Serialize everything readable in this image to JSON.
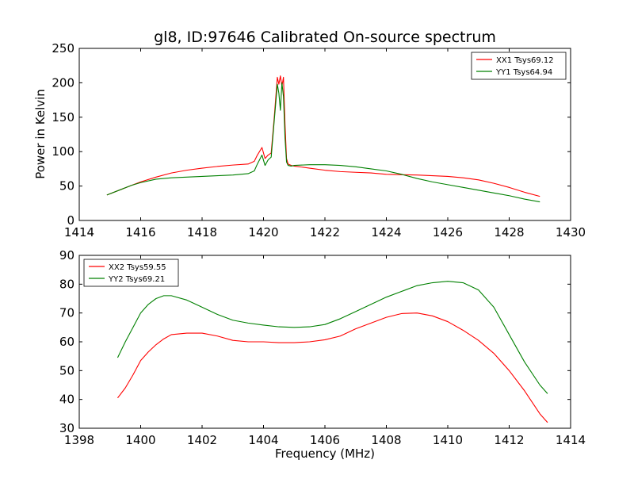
{
  "title": "gl8, ID:97646 Calibrated On-source spectrum",
  "colors": {
    "xx": "#ff0000",
    "yy": "#008000",
    "axis": "#000000",
    "background": "#ffffff"
  },
  "chart_data": [
    {
      "type": "line",
      "title": "gl8, ID:97646 Calibrated On-source spectrum",
      "xlabel": "",
      "ylabel": "Power in Kelvin",
      "xlim": [
        1414,
        1430
      ],
      "ylim": [
        0,
        250
      ],
      "xticks": [
        1414,
        1416,
        1418,
        1420,
        1422,
        1424,
        1426,
        1428,
        1430
      ],
      "yticks": [
        0,
        50,
        100,
        150,
        200,
        250
      ],
      "xtick_labels": [
        "1414",
        "1416",
        "1418",
        "1420",
        "1422",
        "1424",
        "1426",
        "1428",
        "1430"
      ],
      "ytick_labels": [
        "0",
        "50",
        "100",
        "150",
        "200",
        "250"
      ],
      "grid": false,
      "legend_position": "top-right",
      "series": [
        {
          "name": "XX1 Tsys69.12",
          "color": "#ff0000",
          "x": [
            1414.9,
            1415.3,
            1415.7,
            1416.0,
            1416.5,
            1417.0,
            1417.5,
            1418.0,
            1418.5,
            1419.0,
            1419.5,
            1419.7,
            1419.8,
            1419.95,
            1420.05,
            1420.15,
            1420.25,
            1420.35,
            1420.45,
            1420.5,
            1420.55,
            1420.6,
            1420.65,
            1420.7,
            1420.75,
            1420.8,
            1420.9,
            1421.0,
            1421.5,
            1422.0,
            1422.5,
            1423.0,
            1423.5,
            1424.0,
            1424.5,
            1425.0,
            1425.5,
            1426.0,
            1426.5,
            1427.0,
            1427.5,
            1428.0,
            1428.5,
            1429.0
          ],
          "y": [
            37,
            44,
            51,
            56,
            63,
            69,
            73,
            76,
            78.5,
            80.5,
            82,
            86,
            95,
            106,
            90,
            95,
            98,
            150,
            208,
            198,
            210,
            195,
            208,
            140,
            90,
            82,
            80,
            79,
            76,
            73,
            71,
            70,
            69,
            67,
            66.5,
            66,
            65,
            64,
            62,
            59,
            54,
            48,
            41,
            35
          ]
        },
        {
          "name": "YY1 Tsys64.94",
          "color": "#008000",
          "x": [
            1414.9,
            1415.3,
            1415.7,
            1416.0,
            1416.5,
            1417.0,
            1417.5,
            1418.0,
            1418.5,
            1419.0,
            1419.5,
            1419.7,
            1419.8,
            1419.95,
            1420.05,
            1420.15,
            1420.25,
            1420.35,
            1420.45,
            1420.5,
            1420.55,
            1420.6,
            1420.65,
            1420.7,
            1420.75,
            1420.8,
            1420.9,
            1421.0,
            1421.5,
            1422.0,
            1422.5,
            1423.0,
            1423.5,
            1424.0,
            1424.5,
            1425.0,
            1425.5,
            1426.0,
            1426.5,
            1427.0,
            1427.5,
            1428.0,
            1428.5,
            1429.0
          ],
          "y": [
            37,
            44,
            51,
            55,
            60,
            62,
            63,
            64,
            65,
            66,
            68,
            72,
            82,
            95,
            80,
            88,
            92,
            145,
            198,
            185,
            160,
            200,
            180,
            120,
            85,
            80,
            79,
            80,
            81,
            81,
            80,
            78,
            75,
            72,
            67,
            61,
            56,
            52,
            48,
            44,
            40,
            36,
            31,
            27
          ]
        }
      ]
    },
    {
      "type": "line",
      "title": "",
      "xlabel": "Frequency (MHz)",
      "ylabel": "",
      "xlim": [
        1398,
        1414
      ],
      "ylim": [
        30,
        90
      ],
      "xticks": [
        1398,
        1400,
        1402,
        1404,
        1406,
        1408,
        1410,
        1412,
        1414
      ],
      "yticks": [
        30,
        40,
        50,
        60,
        70,
        80,
        90
      ],
      "xtick_labels": [
        "1398",
        "1400",
        "1402",
        "1404",
        "1406",
        "1408",
        "1410",
        "1412",
        "1414"
      ],
      "ytick_labels": [
        "30",
        "40",
        "50",
        "60",
        "70",
        "80",
        "90"
      ],
      "grid": false,
      "legend_position": "top-left",
      "series": [
        {
          "name": "XX2 Tsys59.55",
          "color": "#ff0000",
          "x": [
            1399.25,
            1399.5,
            1399.75,
            1400.0,
            1400.25,
            1400.5,
            1400.75,
            1401.0,
            1401.5,
            1402.0,
            1402.5,
            1403.0,
            1403.5,
            1404.0,
            1404.5,
            1405.0,
            1405.5,
            1406.0,
            1406.5,
            1407.0,
            1407.5,
            1408.0,
            1408.5,
            1409.0,
            1409.5,
            1410.0,
            1410.5,
            1411.0,
            1411.5,
            1412.0,
            1412.5,
            1413.0,
            1413.25
          ],
          "y": [
            40.5,
            44,
            48.5,
            53.5,
            56.5,
            59,
            61,
            62.5,
            63,
            63,
            62,
            60.5,
            60,
            60,
            59.7,
            59.7,
            60,
            60.7,
            62,
            64.5,
            66.5,
            68.5,
            69.8,
            70,
            69,
            67,
            64,
            60.5,
            56,
            50,
            43,
            35,
            32
          ]
        },
        {
          "name": "YY2 Tsys69.21",
          "color": "#008000",
          "x": [
            1399.25,
            1399.5,
            1399.75,
            1400.0,
            1400.25,
            1400.5,
            1400.75,
            1401.0,
            1401.5,
            1402.0,
            1402.5,
            1403.0,
            1403.5,
            1404.0,
            1404.5,
            1405.0,
            1405.5,
            1406.0,
            1406.5,
            1407.0,
            1407.5,
            1408.0,
            1408.5,
            1409.0,
            1409.5,
            1410.0,
            1410.5,
            1411.0,
            1411.5,
            1412.0,
            1412.5,
            1413.0,
            1413.25
          ],
          "y": [
            54.5,
            60,
            65,
            70,
            73,
            75,
            76,
            76,
            74.5,
            72,
            69.5,
            67.5,
            66.5,
            65.8,
            65.2,
            65,
            65.2,
            66,
            68,
            70.5,
            73,
            75.5,
            77.5,
            79.5,
            80.5,
            81,
            80.5,
            78,
            72,
            62.5,
            53,
            45,
            42
          ]
        }
      ]
    }
  ]
}
